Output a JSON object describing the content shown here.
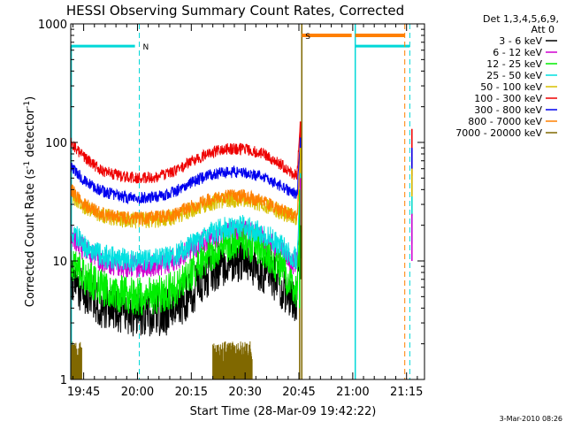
{
  "chart_data": {
    "type": "line",
    "title": "HESSI Observing Summary Count Rates, Corrected",
    "xlabel": "Start Time (28-Mar-09 19:42:22)",
    "ylabel_main": "Corrected Count Rate (s",
    "ylabel_sup1": "-1",
    "ylabel_mid": " detector",
    "ylabel_sup2": "-1",
    "ylabel_end": ")",
    "y_scale": "log",
    "ylim": [
      1,
      1000
    ],
    "xlim": [
      -3.6,
      95
    ],
    "x_units": "minutes after 19:45",
    "x_tick_labels": [
      {
        "t": 0,
        "label": "19:45"
      },
      {
        "t": 15,
        "label": "20:00"
      },
      {
        "t": 30,
        "label": "20:15"
      },
      {
        "t": 45,
        "label": "20:30"
      },
      {
        "t": 60,
        "label": "20:45"
      },
      {
        "t": 75,
        "label": "21:00"
      },
      {
        "t": 90,
        "label": "21:15"
      }
    ],
    "y_tick_labels": [
      {
        "v": 1,
        "label": "1"
      },
      {
        "v": 10,
        "label": "10"
      },
      {
        "v": 100,
        "label": "100"
      },
      {
        "v": 1000,
        "label": "1000"
      }
    ],
    "legend_header_1": "Det 1,3,4,5,6,9,",
    "legend_header_2": "Att 0",
    "legend_position": "right, outside plot",
    "series": [
      {
        "name": "3 - 6 keV",
        "color": "#000000",
        "x": [
          -3.5,
          0,
          5,
          10,
          15,
          20,
          25,
          30,
          35,
          40,
          45,
          50,
          55,
          58,
          59.5,
          60.4
        ],
        "y": [
          7.5,
          5.5,
          4.3,
          3.7,
          3.6,
          3.6,
          3.8,
          5.5,
          8,
          10,
          10.5,
          8.5,
          6.2,
          4.8,
          4.4,
          20
        ]
      },
      {
        "name": "6 - 12 keV",
        "color": "#d000d0",
        "x": [
          -3.5,
          0,
          5,
          10,
          15,
          20,
          25,
          30,
          35,
          40,
          45,
          50,
          55,
          58,
          59.5,
          60.4
        ],
        "y": [
          17,
          12.5,
          10,
          9.2,
          9,
          9.1,
          9.8,
          12.5,
          15.5,
          17,
          17.5,
          15.5,
          12,
          9.8,
          9.4,
          50
        ]
      },
      {
        "name": "12 - 25 keV",
        "color": "#00ee00",
        "x": [
          -3.5,
          0,
          5,
          10,
          15,
          20,
          25,
          30,
          35,
          40,
          45,
          50,
          55,
          58,
          59.5,
          60.4
        ],
        "y": [
          10,
          7.5,
          6,
          5.3,
          5,
          5.1,
          5.7,
          8,
          11.5,
          14,
          14.5,
          12,
          8.5,
          6.2,
          5.6,
          30
        ]
      },
      {
        "name": "25 - 50 keV",
        "color": "#00e0e0",
        "x": [
          -3.5,
          0,
          5,
          10,
          15,
          20,
          25,
          30,
          35,
          40,
          45,
          50,
          55,
          58,
          59.5,
          60.4
        ],
        "y": [
          18,
          13.5,
          11,
          10.3,
          10.1,
          10.2,
          10.8,
          13.5,
          17,
          19,
          19.5,
          17,
          13.5,
          11,
          10.5,
          55
        ]
      },
      {
        "name": "50 - 100 keV",
        "color": "#d8c000",
        "x": [
          -3.5,
          0,
          5,
          10,
          15,
          20,
          25,
          30,
          35,
          40,
          45,
          50,
          55,
          58,
          59.5,
          60.4
        ],
        "y": [
          36,
          29,
          24.5,
          22.5,
          22,
          22.2,
          23.5,
          27,
          31,
          33,
          33,
          30,
          26,
          23.5,
          22.5,
          90
        ]
      },
      {
        "name": "100 - 300 keV",
        "color": "#ee0000",
        "x": [
          -3.5,
          0,
          5,
          10,
          15,
          20,
          25,
          30,
          35,
          40,
          45,
          50,
          55,
          58,
          59.5,
          60.4
        ],
        "y": [
          98,
          75,
          58,
          52,
          50,
          51,
          56,
          69,
          82,
          88,
          88,
          80,
          65,
          55,
          53,
          150
        ]
      },
      {
        "name": "300 - 800 keV",
        "color": "#0000ee",
        "x": [
          -3.5,
          0,
          5,
          10,
          15,
          20,
          25,
          30,
          35,
          40,
          45,
          50,
          55,
          58,
          59.5,
          60.4
        ],
        "y": [
          62,
          48,
          39,
          35,
          34,
          34.5,
          38,
          46,
          53,
          56,
          56,
          51,
          43,
          38,
          36,
          110
        ]
      },
      {
        "name": "800 - 7000 keV",
        "color": "#ff8000",
        "x": [
          -3.5,
          0,
          5,
          10,
          15,
          20,
          25,
          30,
          35,
          40,
          45,
          50,
          55,
          58,
          59.5,
          60.4
        ],
        "y": [
          40,
          30,
          25,
          23.2,
          23,
          23.1,
          24.5,
          28.5,
          33,
          35,
          35,
          32,
          27,
          24.5,
          23.5,
          70
        ]
      },
      {
        "name": "7000 - 20000 keV",
        "color": "#806800",
        "x": [
          -3.5,
          -0.5
        ],
        "y": [
          1.8,
          1.8
        ]
      }
    ],
    "annotations": [
      {
        "label": "N",
        "color": "#00d8d8",
        "t": 15.5,
        "y": 650
      },
      {
        "label": "S",
        "color": "#ff8000",
        "t": 60.8,
        "y": 800
      }
    ]
  },
  "footer": {
    "timestamp": "3-Mar-2010 08:26"
  }
}
